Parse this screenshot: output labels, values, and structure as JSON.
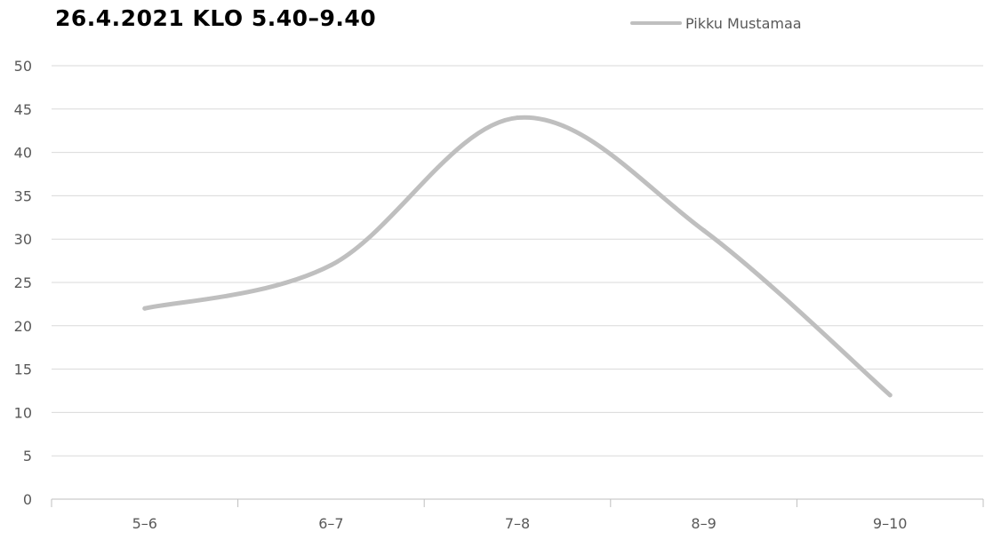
{
  "chart_data": {
    "type": "line",
    "title": "26.4.2021 KLO 5.40–9.40",
    "categories": [
      "5–6",
      "6–7",
      "7–8",
      "8–9",
      "9–10"
    ],
    "series": [
      {
        "name": "Pikku Mustamaa",
        "values": [
          22,
          27,
          44,
          31,
          12
        ],
        "color": "#bfbfbf"
      }
    ],
    "ylim": [
      0,
      50
    ],
    "yticks": [
      0,
      5,
      10,
      15,
      20,
      25,
      30,
      35,
      40,
      45,
      50
    ],
    "grid": true,
    "legend_position": "top-right",
    "smooth": true,
    "gridline_color": "#d9d9d9"
  }
}
